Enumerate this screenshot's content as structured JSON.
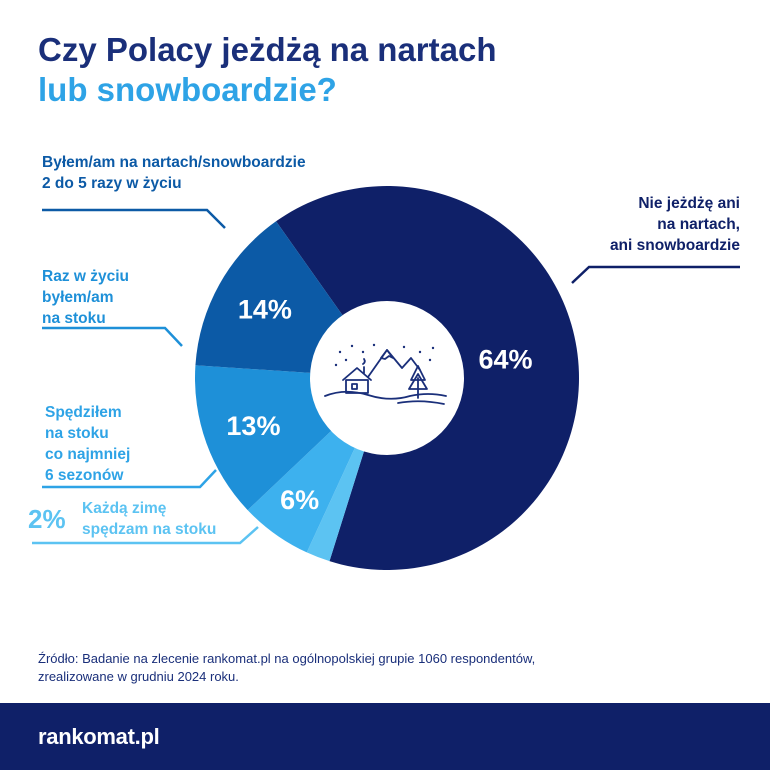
{
  "title": {
    "line1": "Czy Polacy jeżdżą na nartach",
    "line2": "lub snowboardzie?"
  },
  "chart_data": {
    "type": "pie",
    "style": "donut",
    "slices": [
      {
        "label": "Nie jeżdżę ani na nartach, ani snowboardzie",
        "value": 64,
        "display": "64%",
        "color": "#0f2068"
      },
      {
        "label": "Każdą zimę spędzam na stoku",
        "value": 2,
        "display": "2%",
        "color": "#5cc3f2"
      },
      {
        "label": "Spędziłem na stoku co najmniej 6 sezonów",
        "value": 6,
        "display": "6%",
        "color": "#3db1ee"
      },
      {
        "label": "Raz w życiu byłem/am na stoku",
        "value": 13,
        "display": "13%",
        "color": "#1e90d8"
      },
      {
        "label": "Byłem/am na nartach/snowboardzie 2 do 5 razy w życiu",
        "value": 14,
        "display": "14%",
        "color": "#0c5aa6"
      }
    ],
    "center_icon": "mountain-cabin-icon"
  },
  "labels": {
    "nie": [
      "Nie jeżdżę ani",
      "na nartach,",
      "ani snowboardzie"
    ],
    "byl": [
      "Byłem/am na nartach/snowboardzie",
      "2 do 5 razy w życiu"
    ],
    "raz": [
      "Raz w życiu",
      "byłem/am",
      "na stoku"
    ],
    "sped": [
      "Spędziłem",
      "na stoku",
      "co najmniej",
      "6 sezonów"
    ],
    "kazda": [
      "Każdą zimę",
      "spędzam na stoku"
    ],
    "kazda_pct": "2%"
  },
  "source": {
    "line1": "Źródło: Badanie na zlecenie rankomat.pl na ogólnopolskiej grupie 1060 respondentów,",
    "line2": "zrealizowane w grudniu 2024 roku."
  },
  "footer": {
    "logo": "rankomat.pl"
  }
}
